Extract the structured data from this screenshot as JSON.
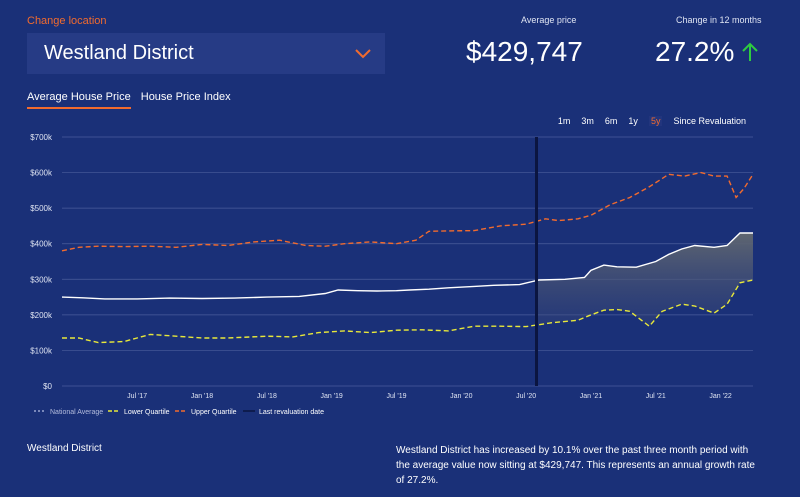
{
  "location": {
    "label": "Change location",
    "value": "Westland District"
  },
  "stats": {
    "avg_label": "Average price",
    "avg_value": "$429,747",
    "change_label": "Change in 12 months",
    "change_value": "27.2%"
  },
  "tabs": [
    {
      "label": "Average House Price",
      "active": true
    },
    {
      "label": "House Price Index",
      "active": false
    }
  ],
  "ranges": [
    {
      "label": "1m",
      "active": false
    },
    {
      "label": "3m",
      "active": false
    },
    {
      "label": "6m",
      "active": false
    },
    {
      "label": "1y",
      "active": false
    },
    {
      "label": "5y",
      "active": true
    },
    {
      "label": "Since Revaluation",
      "active": false
    }
  ],
  "colors": {
    "background": "#1a3078",
    "accent": "#f26b2e",
    "average": "#ffffff",
    "lower": "#e8e83a",
    "upper": "#f26b2e",
    "revaluation": "#0b1540",
    "up_arrow": "#2ecc40"
  },
  "chart_data": {
    "type": "line",
    "ylim": [
      0,
      700000
    ],
    "xlim": [
      2016.92,
      2022.25
    ],
    "y_ticks": [
      {
        "value": 0,
        "label": "$0"
      },
      {
        "value": 100000,
        "label": "$100k"
      },
      {
        "value": 200000,
        "label": "$200k"
      },
      {
        "value": 300000,
        "label": "$300k"
      },
      {
        "value": 400000,
        "label": "$400k"
      },
      {
        "value": 500000,
        "label": "$500k"
      },
      {
        "value": 600000,
        "label": "$600k"
      },
      {
        "value": 700000,
        "label": "$700k"
      }
    ],
    "x_ticks": [
      {
        "value": 2017.5,
        "label": "Jul '17"
      },
      {
        "value": 2018.0,
        "label": "Jan '18"
      },
      {
        "value": 2018.5,
        "label": "Jul '18"
      },
      {
        "value": 2019.0,
        "label": "Jan '19"
      },
      {
        "value": 2019.5,
        "label": "Jul '19"
      },
      {
        "value": 2020.0,
        "label": "Jan '20"
      },
      {
        "value": 2020.5,
        "label": "Jul '20"
      },
      {
        "value": 2021.0,
        "label": "Jan '21"
      },
      {
        "value": 2021.5,
        "label": "Jul '21"
      },
      {
        "value": 2022.0,
        "label": "Jan '22"
      }
    ],
    "revaluation_x": 2020.58,
    "grid": true,
    "legend": [
      {
        "key": "average",
        "label": "National Average"
      },
      {
        "key": "lower",
        "label": "Lower Quartile"
      },
      {
        "key": "upper",
        "label": "Upper Quartile"
      },
      {
        "key": "revaluation",
        "label": "Last revaluation date"
      }
    ],
    "series": [
      {
        "name": "average",
        "x": [
          2016.92,
          2017.08,
          2017.25,
          2017.5,
          2017.75,
          2018.0,
          2018.25,
          2018.5,
          2018.75,
          2018.95,
          2019.05,
          2019.2,
          2019.35,
          2019.5,
          2019.6,
          2019.75,
          2019.9,
          2020.1,
          2020.25,
          2020.45,
          2020.6,
          2020.8,
          2020.95,
          2021.0,
          2021.1,
          2021.2,
          2021.35,
          2021.5,
          2021.6,
          2021.7,
          2021.8,
          2021.95,
          2022.05,
          2022.15,
          2022.25
        ],
        "values": [
          250000,
          248000,
          245000,
          245000,
          247000,
          246000,
          247000,
          250000,
          252000,
          260000,
          270000,
          268000,
          267000,
          268000,
          270000,
          272000,
          276000,
          280000,
          283000,
          285000,
          298000,
          300000,
          305000,
          325000,
          340000,
          335000,
          334000,
          350000,
          370000,
          385000,
          395000,
          390000,
          395000,
          430000,
          430000
        ]
      },
      {
        "name": "lower",
        "x": [
          2016.92,
          2017.05,
          2017.2,
          2017.4,
          2017.6,
          2017.8,
          2018.0,
          2018.2,
          2018.5,
          2018.7,
          2018.9,
          2019.1,
          2019.3,
          2019.5,
          2019.7,
          2019.9,
          2020.1,
          2020.3,
          2020.5,
          2020.7,
          2020.9,
          2021.0,
          2021.1,
          2021.2,
          2021.3,
          2021.45,
          2021.55,
          2021.7,
          2021.8,
          2021.95,
          2022.05,
          2022.15,
          2022.25
        ],
        "values": [
          135000,
          135000,
          122000,
          125000,
          145000,
          140000,
          135000,
          135000,
          140000,
          138000,
          150000,
          155000,
          150000,
          157000,
          158000,
          155000,
          168000,
          168000,
          167000,
          178000,
          185000,
          200000,
          213000,
          215000,
          210000,
          168000,
          210000,
          230000,
          225000,
          205000,
          230000,
          290000,
          298000
        ]
      },
      {
        "name": "upper",
        "x": [
          2016.92,
          2017.05,
          2017.2,
          2017.4,
          2017.6,
          2017.8,
          2018.0,
          2018.2,
          2018.4,
          2018.6,
          2018.8,
          2018.95,
          2019.1,
          2019.3,
          2019.5,
          2019.65,
          2019.75,
          2019.9,
          2020.1,
          2020.3,
          2020.5,
          2020.65,
          2020.75,
          2020.9,
          2021.0,
          2021.15,
          2021.3,
          2021.45,
          2021.6,
          2021.72,
          2021.85,
          2021.95,
          2022.05,
          2022.12,
          2022.18,
          2022.25
        ],
        "values": [
          380000,
          390000,
          393000,
          392000,
          393000,
          390000,
          398000,
          395000,
          405000,
          410000,
          395000,
          393000,
          400000,
          405000,
          400000,
          410000,
          435000,
          436000,
          437000,
          450000,
          455000,
          470000,
          465000,
          470000,
          480000,
          510000,
          530000,
          560000,
          595000,
          590000,
          600000,
          590000,
          590000,
          530000,
          555000,
          595000
        ]
      }
    ]
  },
  "footer": {
    "left": "Westland District",
    "right": "Westland District has increased by 10.1% over the past three month period with the average value now sitting at $429,747. This represents an annual growth rate of 27.2%."
  }
}
